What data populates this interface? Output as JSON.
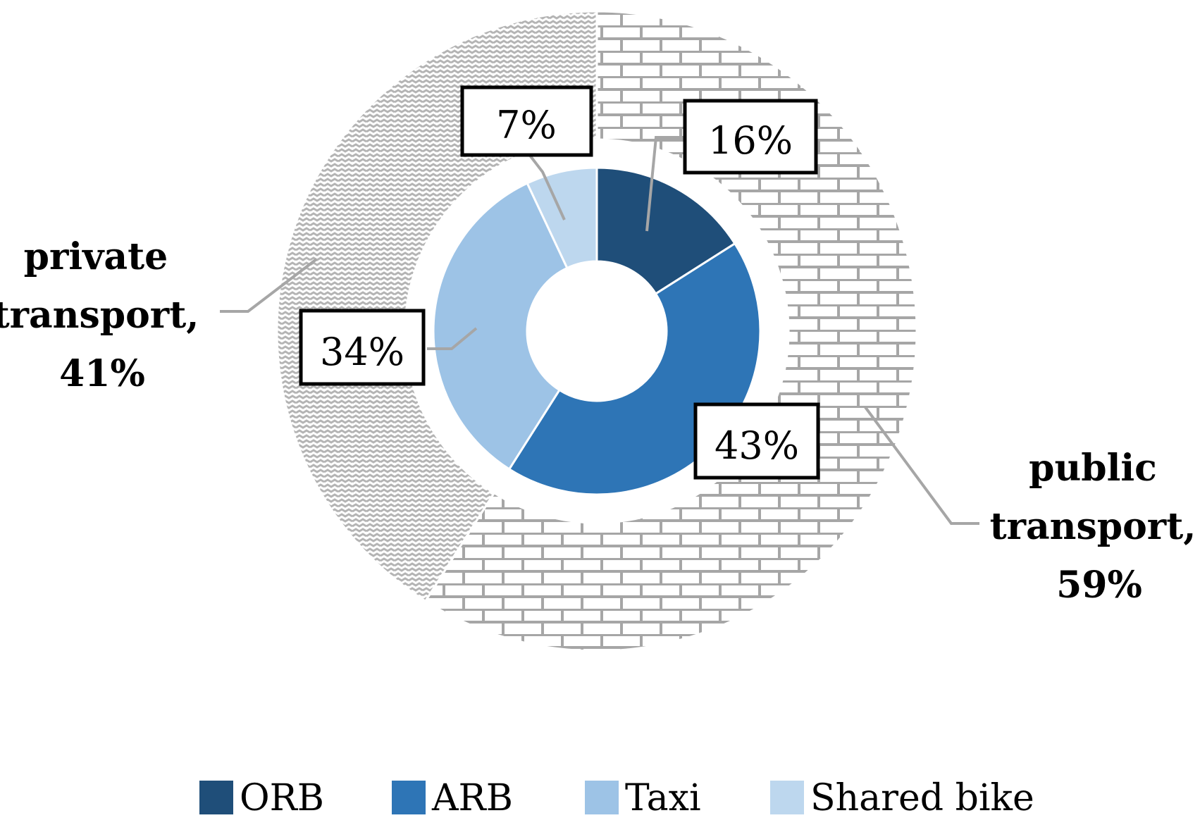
{
  "chart_data": {
    "type": "donut",
    "inner_ring": {
      "categories": [
        "ORB",
        "ARB",
        "Taxi",
        "Shared bike"
      ],
      "values": [
        16,
        43,
        34,
        7
      ],
      "labels": [
        "16%",
        "43%",
        "34%",
        "7%"
      ],
      "colors": [
        "#1f4e79",
        "#2e75b6",
        "#9dc3e6",
        "#bdd7ee"
      ]
    },
    "outer_ring": {
      "categories": [
        "public transport",
        "private transport"
      ],
      "values": [
        59,
        41
      ],
      "labels": [
        [
          "public",
          "transport,",
          "59%"
        ],
        [
          "private",
          "transport,",
          "41%"
        ]
      ],
      "patterns": [
        "brick",
        "wave"
      ],
      "pattern_color": "#a6a6a6"
    },
    "legend": {
      "position": "bottom",
      "items": [
        "ORB",
        "ARB",
        "Taxi",
        "Shared bike"
      ]
    },
    "title": "",
    "xlabel": "",
    "ylabel": ""
  }
}
